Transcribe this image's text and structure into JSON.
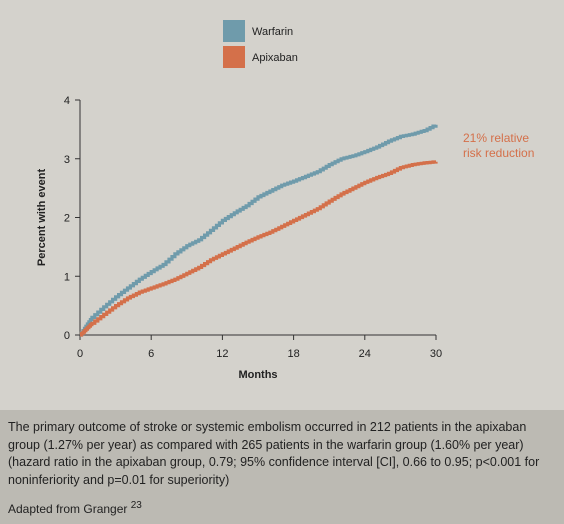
{
  "chart_data": {
    "type": "line",
    "title": "",
    "xlabel": "Months",
    "ylabel": "Percent with event",
    "xlim": [
      0,
      30
    ],
    "ylim": [
      0,
      4
    ],
    "xticks": [
      0,
      6,
      12,
      18,
      24,
      30
    ],
    "yticks": [
      0,
      1,
      2,
      3,
      4
    ],
    "grid": false,
    "legend_position": "top-center",
    "annotation": {
      "lines": [
        "21% relative",
        "risk reduction"
      ],
      "color": "#d4704a"
    },
    "series": [
      {
        "name": "Warfarin",
        "color": "#6f9bab",
        "x": [
          0,
          0.5,
          1,
          2,
          3,
          4,
          5,
          6,
          7,
          8,
          9,
          10,
          11,
          12,
          13,
          14,
          15,
          16,
          17,
          18,
          19,
          20,
          21,
          22,
          23,
          24,
          25,
          26,
          27,
          28,
          29,
          30
        ],
        "y": [
          0,
          0.15,
          0.3,
          0.48,
          0.65,
          0.8,
          0.95,
          1.08,
          1.2,
          1.38,
          1.52,
          1.62,
          1.78,
          1.95,
          2.08,
          2.2,
          2.35,
          2.45,
          2.55,
          2.62,
          2.7,
          2.78,
          2.9,
          3.0,
          3.05,
          3.12,
          3.2,
          3.3,
          3.38,
          3.42,
          3.48,
          3.58
        ]
      },
      {
        "name": "Apixaban",
        "color": "#d4704a",
        "x": [
          0,
          0.5,
          1,
          2,
          3,
          4,
          5,
          6,
          7,
          8,
          9,
          10,
          11,
          12,
          13,
          14,
          15,
          16,
          17,
          18,
          19,
          20,
          21,
          22,
          23,
          24,
          25,
          26,
          27,
          28,
          29,
          30
        ],
        "y": [
          0,
          0.1,
          0.2,
          0.35,
          0.5,
          0.63,
          0.73,
          0.8,
          0.87,
          0.95,
          1.05,
          1.15,
          1.28,
          1.38,
          1.48,
          1.58,
          1.67,
          1.75,
          1.85,
          1.95,
          2.05,
          2.15,
          2.28,
          2.4,
          2.5,
          2.6,
          2.68,
          2.75,
          2.85,
          2.9,
          2.93,
          2.95
        ]
      }
    ]
  },
  "caption": {
    "text": "The primary outcome of stroke or systemic embolism occurred in 212 patients in the apixaban group (1.27% per year) as compared with 265 patients in the warfarin group (1.60% per year) (hazard ratio in the apixaban group, 0.79; 95% confidence interval [CI], 0.66 to 0.95; p<0.001 for noninferiority and p=0.01 for superiority)",
    "source": "Adapted from Granger",
    "source_ref": "23"
  }
}
